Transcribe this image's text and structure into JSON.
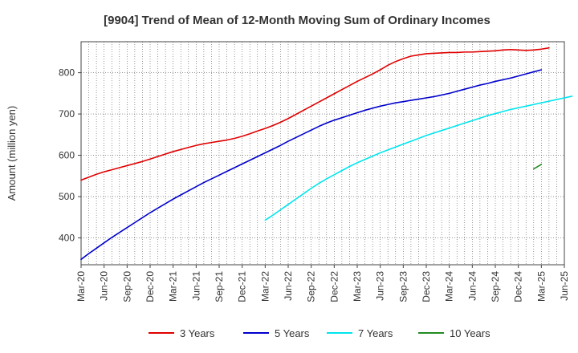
{
  "chart_data": {
    "type": "line",
    "title": "[9904]  Trend of Mean of 12-Month Moving Sum of Ordinary Incomes",
    "xlabel": "",
    "ylabel": "Amount (million yen)",
    "ylim": [
      335,
      875
    ],
    "yticks": [
      400,
      500,
      600,
      700,
      800
    ],
    "grid": true,
    "legend_position": "bottom",
    "x_tick_labels": [
      "Mar-20",
      "Jun-20",
      "Sep-20",
      "Dec-20",
      "Mar-21",
      "Jun-21",
      "Sep-21",
      "Dec-21",
      "Mar-22",
      "Jun-22",
      "Sep-22",
      "Dec-22",
      "Mar-23",
      "Jun-23",
      "Sep-23",
      "Dec-23",
      "Mar-24",
      "Jun-24",
      "Sep-24",
      "Dec-24",
      "Mar-25",
      "Jun-25"
    ],
    "x_months": [
      "Mar-20",
      "Apr-20",
      "May-20",
      "Jun-20",
      "Jul-20",
      "Aug-20",
      "Sep-20",
      "Oct-20",
      "Nov-20",
      "Dec-20",
      "Jan-21",
      "Feb-21",
      "Mar-21",
      "Apr-21",
      "May-21",
      "Jun-21",
      "Jul-21",
      "Aug-21",
      "Sep-21",
      "Oct-21",
      "Nov-21",
      "Dec-21",
      "Jan-22",
      "Feb-22",
      "Mar-22",
      "Apr-22",
      "May-22",
      "Jun-22",
      "Jul-22",
      "Aug-22",
      "Sep-22",
      "Oct-22",
      "Nov-22",
      "Dec-22",
      "Jan-23",
      "Feb-23",
      "Mar-23",
      "Apr-23",
      "May-23",
      "Jun-23",
      "Jul-23",
      "Aug-23",
      "Sep-23",
      "Oct-23",
      "Nov-23",
      "Dec-23",
      "Jan-24",
      "Feb-24",
      "Mar-24",
      "Apr-24",
      "May-24",
      "Jun-24",
      "Jul-24",
      "Aug-24",
      "Sep-24",
      "Oct-24",
      "Nov-24",
      "Dec-24",
      "Jan-25",
      "Feb-25",
      "Mar-25",
      "Apr-25",
      "May-25",
      "Jun-25"
    ],
    "series": [
      {
        "name": "3 Years",
        "color": "#e00000",
        "start_index": 0,
        "values": [
          540,
          547,
          554,
          560,
          565,
          570,
          575,
          580,
          585,
          591,
          597,
          603,
          609,
          614,
          619,
          624,
          628,
          631,
          634,
          637,
          641,
          646,
          652,
          659,
          665,
          672,
          680,
          689,
          699,
          709,
          719,
          729,
          739,
          749,
          759,
          769,
          779,
          788,
          797,
          807,
          818,
          827,
          834,
          840,
          843,
          846,
          847,
          848,
          849,
          849,
          850,
          850,
          851,
          852,
          853,
          855,
          856,
          855,
          854,
          855,
          857,
          860
        ]
      },
      {
        "name": "5 Years",
        "color": "#0000cc",
        "start_index": 0,
        "values": [
          348,
          362,
          375,
          388,
          401,
          413,
          425,
          437,
          449,
          461,
          472,
          483,
          494,
          504,
          514,
          524,
          534,
          543,
          552,
          561,
          570,
          579,
          588,
          597,
          606,
          615,
          624,
          634,
          643,
          652,
          661,
          670,
          678,
          685,
          691,
          697,
          703,
          709,
          714,
          719,
          723,
          727,
          730,
          733,
          736,
          739,
          742,
          746,
          750,
          755,
          760,
          765,
          770,
          774,
          779,
          783,
          787,
          792,
          797,
          802,
          807
        ]
      },
      {
        "name": "7 Years",
        "color": "#00e5ee",
        "start_index": 24,
        "values": [
          443,
          455,
          468,
          481,
          494,
          507,
          520,
          532,
          543,
          553,
          563,
          573,
          582,
          590,
          598,
          606,
          613,
          620,
          627,
          634,
          641,
          648,
          654,
          660,
          666,
          672,
          678,
          684,
          690,
          696,
          701,
          706,
          711,
          715,
          719,
          723,
          727,
          731,
          735,
          739,
          743
        ]
      },
      {
        "name": "10 Years",
        "color": "#228b22",
        "start_index": 59,
        "values": [
          567,
          578
        ]
      }
    ]
  }
}
